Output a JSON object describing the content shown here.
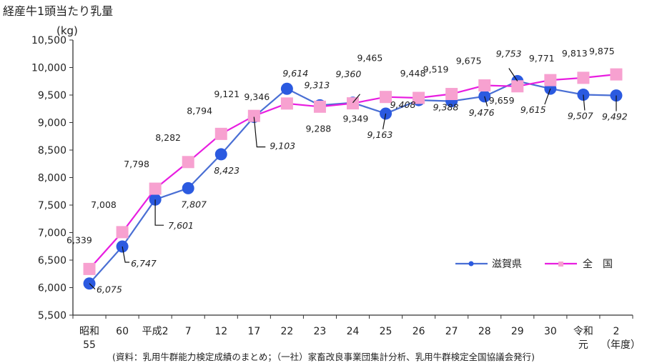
{
  "title": "経産牛1頭当たり乳量",
  "unit": "(kg)",
  "source": "(資料：乳用牛群能力検定成績のまとめ；（一社）家畜改良事業団集計分析、乳用牛群検定全国協議会発行)",
  "colors": {
    "shiga": "#4a6fd4",
    "shiga_marker": "#2b5ae0",
    "zenkoku": "#e81ee0",
    "zenkoku_marker": "#f7a1d0",
    "axis": "#333333"
  },
  "chart_data": {
    "type": "line",
    "title": "経産牛1頭当たり乳量",
    "ylabel": "(kg)",
    "xlabel": "（年度）",
    "ylim": [
      5500,
      10500
    ],
    "yticks": [
      5500,
      6000,
      6500,
      7000,
      7500,
      8000,
      8500,
      9000,
      9500,
      10000,
      10500
    ],
    "yticklabels": [
      "5,500",
      "6,000",
      "6,500",
      "7,000",
      "7,500",
      "8,000",
      "8,500",
      "9,000",
      "9,500",
      "10,000",
      "10,500"
    ],
    "categories": [
      "昭和55",
      "60",
      "平成2",
      "7",
      "12",
      "17",
      "22",
      "23",
      "24",
      "25",
      "26",
      "27",
      "28",
      "29",
      "30",
      "令和元",
      "2"
    ],
    "category_lines": [
      [
        "昭和",
        "55"
      ],
      [
        "60"
      ],
      [
        "平成2"
      ],
      [
        "7"
      ],
      [
        "12"
      ],
      [
        "17"
      ],
      [
        "22"
      ],
      [
        "23"
      ],
      [
        "24"
      ],
      [
        "25"
      ],
      [
        "26"
      ],
      [
        "27"
      ],
      [
        "28"
      ],
      [
        "29"
      ],
      [
        "30"
      ],
      [
        "令和",
        "元"
      ],
      [
        "2"
      ]
    ],
    "series": [
      {
        "name": "滋賀県",
        "values": [
          6075,
          6747,
          7601,
          7807,
          8423,
          9103,
          9614,
          9313,
          9360,
          9163,
          9408,
          9388,
          9476,
          9753,
          9615,
          9507,
          9492
        ],
        "labels": [
          "6,075",
          "6,747",
          "7,601",
          "7,807",
          "8,423",
          "9,103",
          "9,614",
          "9,313",
          "9,360",
          "9,163",
          "9,408",
          "9,388",
          "9,476",
          "9,753",
          "9,615",
          "9,507",
          "9,492"
        ]
      },
      {
        "name": "全　国",
        "values": [
          6339,
          7008,
          7798,
          8282,
          8794,
          9121,
          9346,
          9288,
          9349,
          9465,
          9448,
          9519,
          9675,
          9659,
          9771,
          9813,
          9875
        ],
        "labels": [
          "6,339",
          "7,008",
          "7,798",
          "8,282",
          "8,794",
          "9,121",
          "9,346",
          "9,288",
          "9,349",
          "9,465",
          "9,448",
          "9,519",
          "9,675",
          "9,659",
          "9,771",
          "9,813",
          "9,875"
        ]
      }
    ],
    "legend": {
      "position": "right",
      "entries": [
        "滋賀県",
        "全　国"
      ]
    },
    "grid": false
  }
}
